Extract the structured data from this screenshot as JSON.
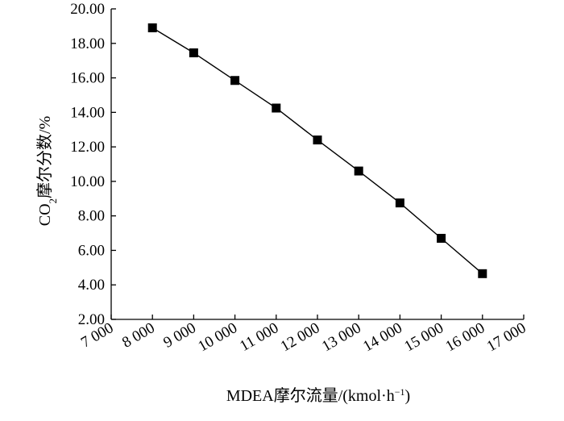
{
  "chart_data": {
    "type": "line",
    "title": "",
    "xlabel": {
      "main": "MDEA摩尔流量/(kmol·h",
      "sup": "−1",
      "close": ")"
    },
    "ylabel": {
      "pre": "CO",
      "sub": "2",
      "post": "摩尔分数/%"
    },
    "xlim": [
      7000,
      17000
    ],
    "ylim": [
      2,
      20
    ],
    "x_ticks": [
      7000,
      8000,
      9000,
      10000,
      11000,
      12000,
      13000,
      14000,
      15000,
      16000,
      17000
    ],
    "x_tick_labels": [
      "7 000",
      "8 000",
      "9 000",
      "10 000",
      "11 000",
      "12 000",
      "13 000",
      "14 000",
      "15 000",
      "16 000",
      "17 000"
    ],
    "y_ticks": [
      2,
      4,
      6,
      8,
      10,
      12,
      14,
      16,
      18,
      20
    ],
    "y_tick_labels": [
      "2.00",
      "4.00",
      "6.00",
      "8.00",
      "10.00",
      "12.00",
      "14.00",
      "16.00",
      "18.00",
      "20.00"
    ],
    "grid": false,
    "marker": "square",
    "series": [
      {
        "x": [
          8000,
          9000,
          10000,
          11000,
          12000,
          13000,
          14000,
          15000,
          16000
        ],
        "y": [
          18.9,
          17.45,
          15.85,
          14.25,
          12.4,
          10.6,
          8.75,
          6.7,
          4.65
        ]
      }
    ],
    "colors": {
      "line": "#000000",
      "marker": "#000000",
      "axis": "#000000"
    }
  }
}
